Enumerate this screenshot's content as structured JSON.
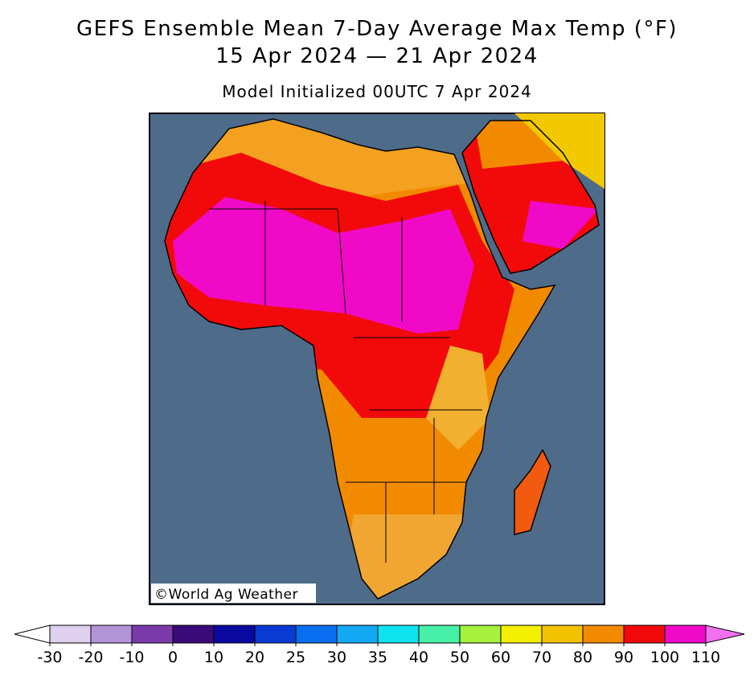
{
  "title": "GEFS Ensemble Mean 7-Day Average Max Temp (°F)",
  "subtitle": "15 Apr 2024 — 21 Apr 2024",
  "init": "Model Initialized 00UTC 7 Apr 2024",
  "credit": "©World Ag Weather",
  "colorbar": {
    "labels": [
      -30,
      -20,
      -10,
      0,
      10,
      20,
      25,
      30,
      35,
      40,
      50,
      60,
      70,
      80,
      90,
      100,
      110
    ],
    "colors": [
      "#ded0ee",
      "#b394d8",
      "#7a3aaa",
      "#3a0a78",
      "#0a0aa0",
      "#0a3ad4",
      "#0a6ef0",
      "#12a8f2",
      "#10e2f0",
      "#46f0a6",
      "#a6f03e",
      "#f2f000",
      "#f2c200",
      "#f28a00",
      "#f20a0a",
      "#f00ac8"
    ],
    "under_color": "#ffffff",
    "over_color": "#f070f0"
  }
}
